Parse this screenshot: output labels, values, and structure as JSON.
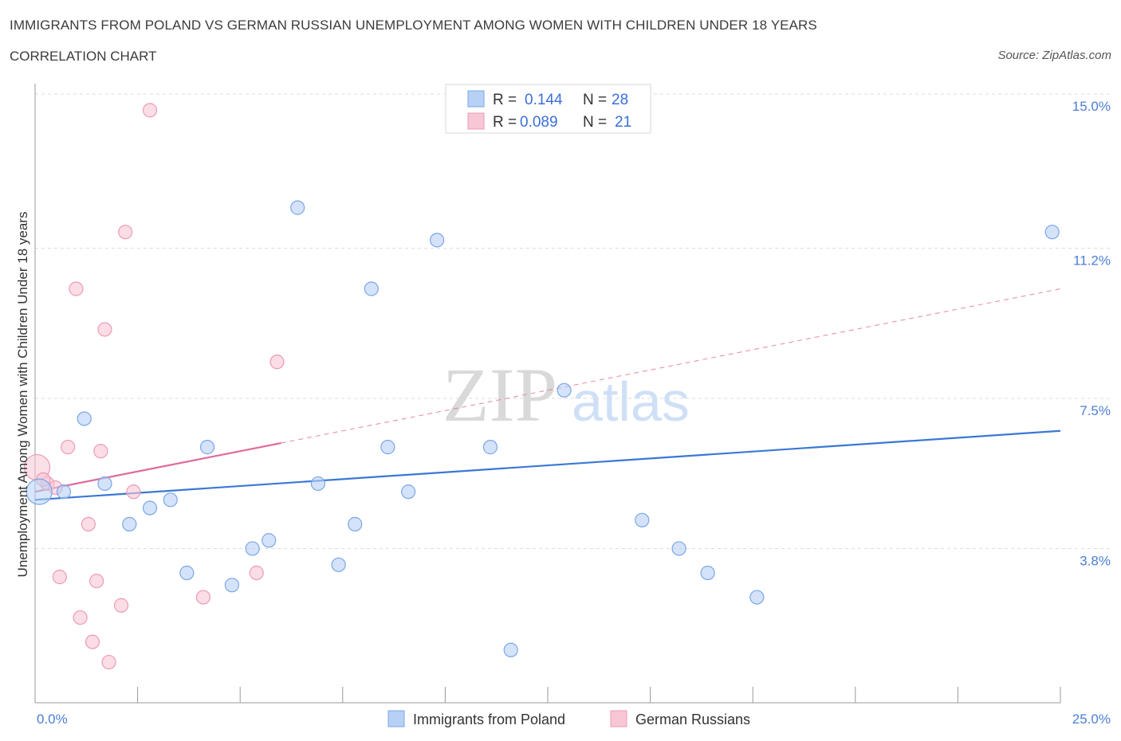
{
  "title": "IMMIGRANTS FROM POLAND VS GERMAN RUSSIAN UNEMPLOYMENT AMONG WOMEN WITH CHILDREN UNDER 18 YEARS",
  "subtitle": "CORRELATION CHART",
  "source": "Source: ZipAtlas.com",
  "watermark": {
    "zip": "ZIP",
    "atlas": "atlas"
  },
  "colors": {
    "blue_fill": "#b7d1f5",
    "blue_stroke": "#7aa6e8",
    "blue_line": "#3a78d4",
    "pink_fill": "#f8c7d5",
    "pink_stroke": "#ee9ab4",
    "pink_line": "#e0689a",
    "grid": "#dcdcdc",
    "tick_text": "#4a7fd4"
  },
  "legend_box": {
    "rows": [
      {
        "r_label": "R =",
        "r_value": "0.144",
        "n_label": "N =",
        "n_value": "28"
      },
      {
        "r_label": "R =",
        "r_value": "0.089",
        "n_label": "N =",
        "n_value": "21"
      }
    ]
  },
  "chart_data": {
    "type": "scatter",
    "title": "IMMIGRANTS FROM POLAND VS GERMAN RUSSIAN UNEMPLOYMENT AMONG WOMEN WITH CHILDREN UNDER 18 YEARS",
    "xlabel": "",
    "ylabel": "Unemployment Among Women with Children Under 18 years",
    "xlim": [
      0,
      25
    ],
    "ylim": [
      0,
      15
    ],
    "x_tick_labels": [
      "0.0%",
      "25.0%"
    ],
    "y_ticks": [
      3.8,
      7.5,
      11.2,
      15.0
    ],
    "y_tick_labels": [
      "3.8%",
      "7.5%",
      "11.2%",
      "15.0%"
    ],
    "grid": true,
    "legend_position": "bottom",
    "series": [
      {
        "name": "Immigrants from Poland",
        "color": "#b7d1f5",
        "trend": {
          "x": [
            0,
            25
          ],
          "y": [
            5.0,
            6.7
          ],
          "dashed_extension": false
        },
        "points": [
          {
            "x": 0.1,
            "y": 5.2,
            "big": true
          },
          {
            "x": 0.7,
            "y": 5.2
          },
          {
            "x": 1.2,
            "y": 7.0
          },
          {
            "x": 1.7,
            "y": 5.4
          },
          {
            "x": 2.3,
            "y": 4.4
          },
          {
            "x": 2.8,
            "y": 4.8
          },
          {
            "x": 3.3,
            "y": 5.0
          },
          {
            "x": 3.7,
            "y": 3.2
          },
          {
            "x": 4.2,
            "y": 6.3
          },
          {
            "x": 4.8,
            "y": 2.9
          },
          {
            "x": 5.3,
            "y": 3.8
          },
          {
            "x": 5.7,
            "y": 4.0
          },
          {
            "x": 6.4,
            "y": 12.2
          },
          {
            "x": 6.9,
            "y": 5.4
          },
          {
            "x": 7.4,
            "y": 3.4
          },
          {
            "x": 7.8,
            "y": 4.4
          },
          {
            "x": 8.2,
            "y": 10.2
          },
          {
            "x": 8.6,
            "y": 6.3
          },
          {
            "x": 9.1,
            "y": 5.2
          },
          {
            "x": 9.8,
            "y": 11.4
          },
          {
            "x": 11.1,
            "y": 6.3
          },
          {
            "x": 11.6,
            "y": 1.3
          },
          {
            "x": 12.9,
            "y": 7.7
          },
          {
            "x": 14.8,
            "y": 4.5
          },
          {
            "x": 15.7,
            "y": 3.8
          },
          {
            "x": 16.4,
            "y": 3.2
          },
          {
            "x": 17.6,
            "y": 2.6
          },
          {
            "x": 24.8,
            "y": 11.6
          }
        ]
      },
      {
        "name": "German Russians",
        "color": "#f8c7d5",
        "trend": {
          "x": [
            0,
            6
          ],
          "y": [
            5.2,
            6.4
          ],
          "dashed_extension": true,
          "dash_to": [
            25,
            10.2
          ]
        },
        "points": [
          {
            "x": 0.05,
            "y": 5.8,
            "big": true
          },
          {
            "x": 0.3,
            "y": 5.4
          },
          {
            "x": 0.5,
            "y": 5.3
          },
          {
            "x": 0.6,
            "y": 3.1
          },
          {
            "x": 0.8,
            "y": 6.3
          },
          {
            "x": 1.0,
            "y": 10.2
          },
          {
            "x": 1.1,
            "y": 2.1
          },
          {
            "x": 1.3,
            "y": 4.4
          },
          {
            "x": 1.4,
            "y": 1.5
          },
          {
            "x": 1.5,
            "y": 3.0
          },
          {
            "x": 1.6,
            "y": 6.2
          },
          {
            "x": 1.7,
            "y": 9.2
          },
          {
            "x": 1.8,
            "y": 1.0
          },
          {
            "x": 2.1,
            "y": 2.4
          },
          {
            "x": 2.2,
            "y": 11.6
          },
          {
            "x": 2.4,
            "y": 5.2
          },
          {
            "x": 2.8,
            "y": 14.6
          },
          {
            "x": 4.1,
            "y": 2.6
          },
          {
            "x": 5.4,
            "y": 3.2
          },
          {
            "x": 5.9,
            "y": 8.4
          },
          {
            "x": 0.2,
            "y": 5.5
          }
        ]
      }
    ]
  }
}
